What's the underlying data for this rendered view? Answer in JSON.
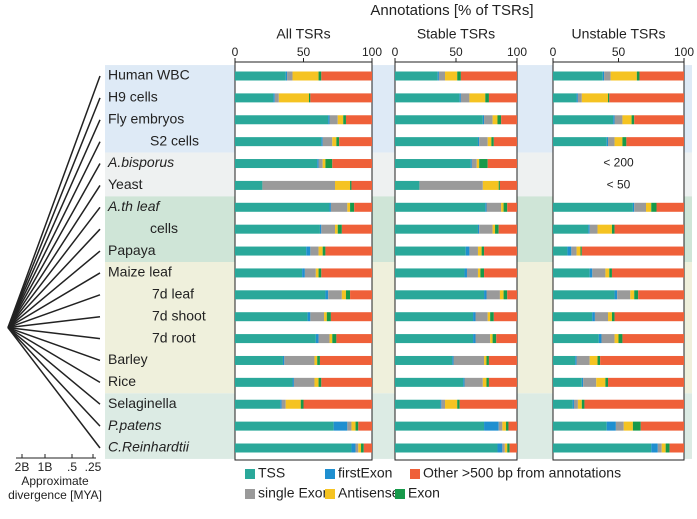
{
  "chart_data": {
    "type": "bar",
    "orientation": "horizontal",
    "stacked": true,
    "title": "Annotations [% of TSRs]",
    "categories": [
      "Human WBC",
      "H9 cells",
      "Fly embryos",
      "S2 cells",
      "A.bisporus",
      "Yeast",
      "A.th leaf",
      "cells",
      "Papaya",
      "Maize leaf",
      "7d leaf",
      "7d shoot",
      "7d root",
      "Barley",
      "Rice",
      "Selaginella",
      "P.patens",
      "C.Reinhardtii"
    ],
    "italic": [
      false,
      false,
      false,
      false,
      true,
      false,
      true,
      false,
      false,
      false,
      false,
      false,
      false,
      false,
      false,
      false,
      true,
      true
    ],
    "xlim": [
      0,
      100
    ],
    "xticks": [
      0,
      50,
      100
    ],
    "series": [
      {
        "name": "TSS",
        "color": "#2aa89a"
      },
      {
        "name": "firstExon",
        "color": "#1f8fd0"
      },
      {
        "name": "single Exon",
        "color": "#9a9a9a"
      },
      {
        "name": "Antisense",
        "color": "#f5c322"
      },
      {
        "name": "Exon",
        "color": "#17994a"
      },
      {
        "name": "Other >500 bp from annotations",
        "color": "#ef6039"
      }
    ],
    "panels": [
      {
        "title": "All TSRs",
        "values": [
          [
            37,
            28,
            68,
            63,
            60,
            20,
            69,
            62,
            52,
            49,
            66,
            53,
            59,
            35,
            42,
            33,
            72,
            85
          ],
          [
            1,
            1,
            1,
            1,
            1,
            0,
            1,
            1,
            3,
            2,
            2,
            2,
            2,
            1,
            1,
            1,
            10,
            3
          ],
          [
            4,
            3,
            6,
            7,
            3,
            53,
            12,
            10,
            6,
            8,
            10,
            10,
            8,
            22,
            15,
            3,
            3,
            2
          ],
          [
            19,
            22,
            4,
            3,
            2,
            11,
            2,
            2,
            3,
            2,
            3,
            2,
            2,
            2,
            3,
            11,
            3,
            2
          ],
          [
            2,
            1,
            2,
            2,
            5,
            1,
            3,
            3,
            2,
            2,
            3,
            3,
            3,
            2,
            2,
            2,
            2,
            2
          ],
          [
            37,
            45,
            19,
            24,
            29,
            15,
            13,
            22,
            34,
            37,
            16,
            30,
            26,
            38,
            37,
            50,
            10,
            6
          ]
        ]
      },
      {
        "title": "Stable TSRs",
        "values": [
          [
            35,
            53,
            72,
            68,
            62,
            20,
            74,
            68,
            58,
            57,
            73,
            64,
            64,
            47,
            56,
            37,
            73,
            84
          ],
          [
            1,
            1,
            1,
            1,
            1,
            0,
            1,
            1,
            3,
            2,
            2,
            2,
            2,
            1,
            1,
            1,
            12,
            4
          ],
          [
            5,
            7,
            7,
            7,
            4,
            52,
            12,
            11,
            7,
            9,
            11,
            10,
            12,
            25,
            15,
            3,
            3,
            2
          ],
          [
            10,
            13,
            4,
            3,
            2,
            13,
            2,
            2,
            3,
            2,
            3,
            2,
            2,
            2,
            3,
            10,
            3,
            2
          ],
          [
            3,
            3,
            3,
            2,
            7,
            1,
            3,
            3,
            2,
            3,
            3,
            3,
            3,
            2,
            2,
            2,
            2,
            2
          ],
          [
            46,
            23,
            13,
            19,
            24,
            14,
            8,
            15,
            27,
            27,
            8,
            19,
            17,
            23,
            23,
            47,
            7,
            6
          ]
        ]
      },
      {
        "title": "Unstable TSRs",
        "values": [
          [
            38,
            18,
            46,
            41,
            null,
            null,
            61,
            27,
            11,
            28,
            47,
            30,
            35,
            17,
            22,
            15,
            41,
            75
          ],
          [
            1,
            1,
            1,
            1,
            null,
            null,
            1,
            1,
            3,
            2,
            2,
            2,
            2,
            1,
            1,
            1,
            7,
            5
          ],
          [
            5,
            3,
            6,
            5,
            null,
            null,
            9,
            6,
            4,
            10,
            10,
            10,
            10,
            10,
            10,
            3,
            6,
            3
          ],
          [
            20,
            20,
            7,
            6,
            null,
            null,
            4,
            11,
            3,
            3,
            3,
            3,
            3,
            6,
            7,
            3,
            7,
            3
          ],
          [
            2,
            1,
            2,
            3,
            null,
            null,
            4,
            2,
            1,
            2,
            3,
            2,
            3,
            2,
            2,
            2,
            6,
            3
          ],
          [
            34,
            57,
            38,
            44,
            null,
            null,
            21,
            53,
            78,
            55,
            35,
            53,
            47,
            64,
            58,
            76,
            33,
            11
          ]
        ],
        "notes": [
          null,
          null,
          null,
          null,
          "< 200",
          "< 50",
          null,
          null,
          null,
          null,
          null,
          null,
          null,
          null,
          null,
          null,
          null,
          null
        ]
      }
    ],
    "divergence_axis": {
      "ticks": [
        "2B",
        "1B",
        ".5",
        ".25"
      ],
      "label": [
        "Approximate",
        "divergence [MYA]"
      ]
    }
  }
}
